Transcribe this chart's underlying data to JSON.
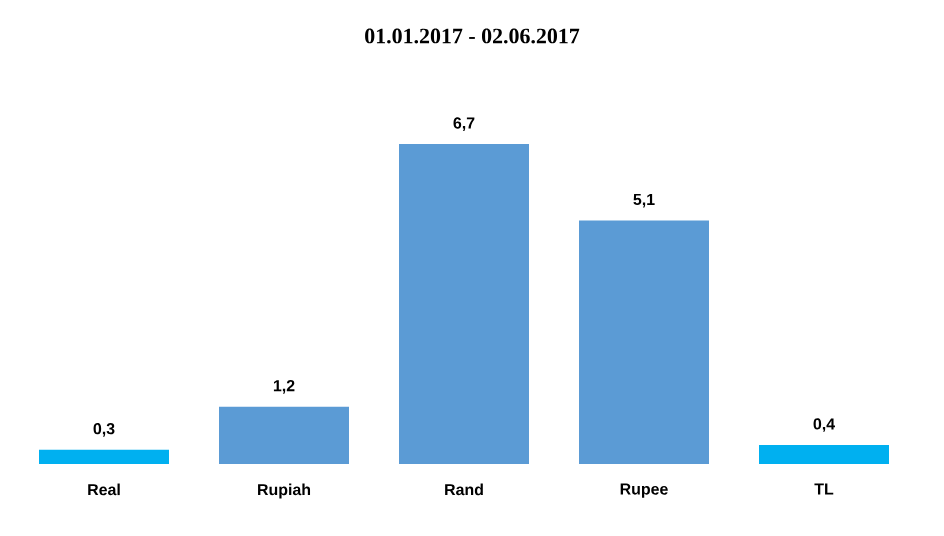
{
  "chart_data": {
    "type": "bar",
    "title": "01.01.2017 - 02.06.2017",
    "categories": [
      "Real",
      "Rupiah",
      "Rand",
      "Rupee",
      "TL"
    ],
    "values": [
      0.3,
      1.2,
      6.7,
      5.1,
      0.4
    ],
    "value_labels": [
      "0,3",
      "1,2",
      "6,7",
      "5,1",
      "0,4"
    ],
    "colors": [
      "#00b0f0",
      "#5b9bd5",
      "#5b9bd5",
      "#5b9bd5",
      "#00b0f0"
    ]
  }
}
